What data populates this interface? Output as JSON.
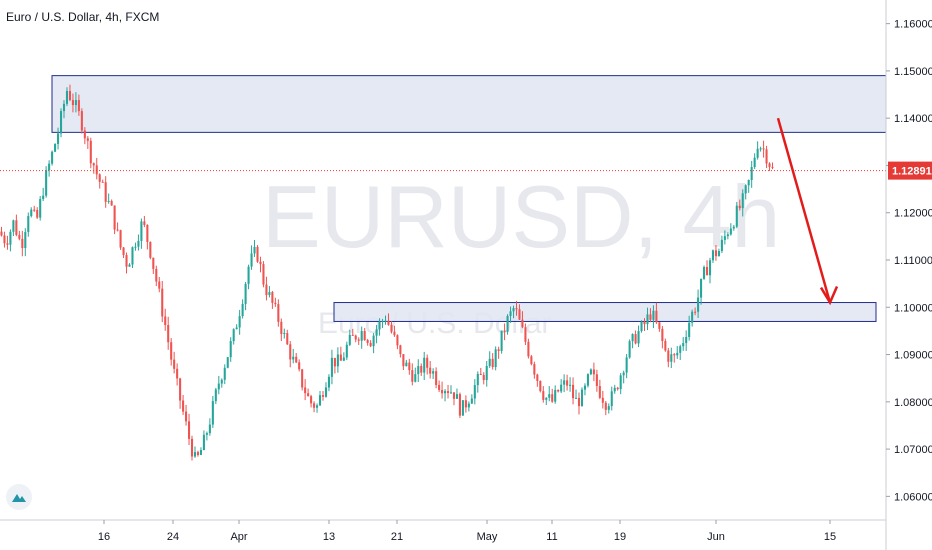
{
  "header": {
    "title": "Euro / U.S. Dollar, 4h, FXCM"
  },
  "watermark": {
    "symbol": "EURUSD, 4h",
    "name": "Euro / U.S. Dollar"
  },
  "colors": {
    "up": "#26a69a",
    "down": "#ef5350",
    "zone_fill": "#e1e5f2",
    "zone_border": "#1e2d8c",
    "arrow": "#e31b1b",
    "price_line": "#e53935"
  },
  "chart_data": {
    "type": "candlestick",
    "symbol": "EURUSD",
    "timeframe": "4h",
    "ylim": [
      1.055,
      1.165
    ],
    "y_ticks": [
      "1.16000",
      "1.15000",
      "1.14000",
      "1.13000",
      "1.12000",
      "1.11000",
      "1.10000",
      "1.09000",
      "1.08000",
      "1.07000",
      "1.06000"
    ],
    "x_ticks": [
      "16",
      "24",
      "Apr",
      "13",
      "21",
      "May",
      "11",
      "19",
      "Jun",
      "15"
    ],
    "last_price": "1.12891",
    "price_path": [
      [
        0,
        1.116
      ],
      [
        1,
        1.114
      ],
      [
        2,
        1.118
      ],
      [
        3,
        1.113
      ],
      [
        4,
        1.121
      ],
      [
        5,
        1.118
      ],
      [
        6,
        1.126
      ],
      [
        7,
        1.132
      ],
      [
        8,
        1.138
      ],
      [
        9,
        1.146
      ],
      [
        10,
        1.143
      ],
      [
        11,
        1.139
      ],
      [
        12,
        1.133
      ],
      [
        13,
        1.128
      ],
      [
        14,
        1.124
      ],
      [
        15,
        1.12
      ],
      [
        16,
        1.113
      ],
      [
        17,
        1.109
      ],
      [
        18,
        1.114
      ],
      [
        19,
        1.118
      ],
      [
        20,
        1.112
      ],
      [
        21,
        1.104
      ],
      [
        22,
        1.096
      ],
      [
        23,
        1.087
      ],
      [
        24,
        1.08
      ],
      [
        25,
        1.073
      ],
      [
        26,
        1.067
      ],
      [
        27,
        1.071
      ],
      [
        28,
        1.077
      ],
      [
        29,
        1.084
      ],
      [
        30,
        1.089
      ],
      [
        31,
        1.094
      ],
      [
        32,
        1.101
      ],
      [
        33,
        1.109
      ],
      [
        34,
        1.112
      ],
      [
        35,
        1.105
      ],
      [
        36,
        1.101
      ],
      [
        37,
        1.097
      ],
      [
        38,
        1.092
      ],
      [
        39,
        1.088
      ],
      [
        40,
        1.084
      ],
      [
        41,
        1.08
      ],
      [
        42,
        1.079
      ],
      [
        43,
        1.084
      ],
      [
        44,
        1.089
      ],
      [
        45,
        1.088
      ],
      [
        46,
        1.092
      ],
      [
        47,
        1.094
      ],
      [
        48,
        1.095
      ],
      [
        49,
        1.093
      ],
      [
        50,
        1.096
      ],
      [
        51,
        1.098
      ],
      [
        52,
        1.094
      ],
      [
        53,
        1.089
      ],
      [
        54,
        1.087
      ],
      [
        55,
        1.085
      ],
      [
        56,
        1.088
      ],
      [
        57,
        1.087
      ],
      [
        58,
        1.084
      ],
      [
        59,
        1.083
      ],
      [
        60,
        1.082
      ],
      [
        61,
        1.078
      ],
      [
        62,
        1.081
      ],
      [
        63,
        1.084
      ],
      [
        64,
        1.086
      ],
      [
        65,
        1.088
      ],
      [
        66,
        1.092
      ],
      [
        67,
        1.097
      ],
      [
        68,
        1.1
      ],
      [
        69,
        1.095
      ],
      [
        70,
        1.09
      ],
      [
        71,
        1.085
      ],
      [
        72,
        1.081
      ],
      [
        73,
        1.08
      ],
      [
        74,
        1.083
      ],
      [
        75,
        1.084
      ],
      [
        76,
        1.08
      ],
      [
        77,
        1.081
      ],
      [
        78,
        1.086
      ],
      [
        79,
        1.083
      ],
      [
        80,
        1.08
      ],
      [
        81,
        1.081
      ],
      [
        82,
        1.086
      ],
      [
        83,
        1.091
      ],
      [
        84,
        1.094
      ],
      [
        85,
        1.096
      ],
      [
        86,
        1.099
      ],
      [
        87,
        1.095
      ],
      [
        88,
        1.09
      ],
      [
        89,
        1.089
      ],
      [
        90,
        1.092
      ],
      [
        91,
        1.097
      ],
      [
        92,
        1.101
      ],
      [
        93,
        1.107
      ],
      [
        94,
        1.111
      ],
      [
        95,
        1.112
      ],
      [
        96,
        1.116
      ],
      [
        97,
        1.119
      ],
      [
        98,
        1.122
      ],
      [
        99,
        1.127
      ],
      [
        100,
        1.135
      ],
      [
        101,
        1.133
      ],
      [
        102,
        1.129
      ]
    ],
    "zones": [
      {
        "name": "resistance-zone",
        "y_top": 1.149,
        "y_bottom": 1.137
      },
      {
        "name": "support-zone",
        "y_top": 1.101,
        "y_bottom": 1.097
      }
    ],
    "arrow": {
      "from": [
        1.14
      ],
      "to": [
        1.101
      ],
      "direction": "down"
    }
  }
}
